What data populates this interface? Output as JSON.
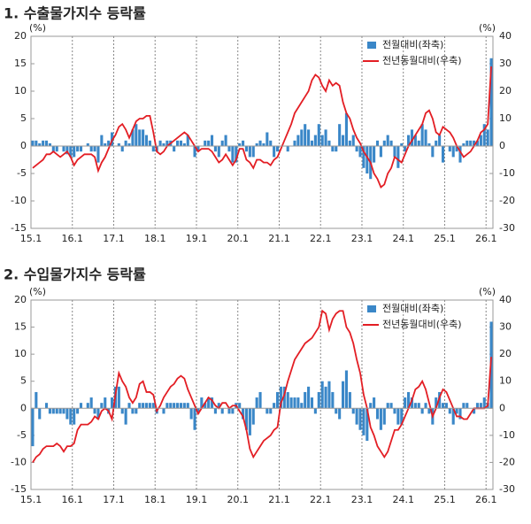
{
  "chart_data": [
    {
      "type": "combo",
      "title": "1. 수출물가지수 등락률",
      "y_label": "(%)",
      "y2_label": "(%)",
      "categories": [
        "15.1",
        null,
        null,
        null,
        null,
        null,
        null,
        null,
        null,
        null,
        null,
        null,
        "16.1",
        null,
        null,
        null,
        null,
        null,
        null,
        null,
        null,
        null,
        null,
        null,
        "17.1",
        null,
        null,
        null,
        null,
        null,
        null,
        null,
        null,
        null,
        null,
        null,
        "18.1",
        null,
        null,
        null,
        null,
        null,
        null,
        null,
        null,
        null,
        null,
        null,
        "19.1",
        null,
        null,
        null,
        null,
        null,
        null,
        null,
        null,
        null,
        null,
        null,
        "20.1",
        null,
        null,
        null,
        null,
        null,
        null,
        null,
        null,
        null,
        null,
        null,
        "21.1",
        null,
        null,
        null,
        null,
        null,
        null,
        null,
        null,
        null,
        null,
        null,
        "22.1",
        null,
        null,
        null,
        null,
        null,
        null,
        null,
        null,
        null,
        null,
        null,
        "23.1",
        null,
        null,
        null,
        null,
        null,
        null,
        null,
        null,
        null,
        null,
        null,
        "24.1",
        null,
        null,
        null,
        null,
        null,
        null,
        null,
        null,
        null,
        null,
        null,
        "25.1",
        null,
        null,
        null,
        null,
        null,
        null,
        null,
        null,
        null,
        null,
        null,
        "26.1",
        null
      ],
      "series": [
        {
          "name": "전월대비(좌축)",
          "type": "bar",
          "color": "#3a87c8",
          "values": [
            1,
            1,
            0.5,
            1,
            1,
            0.5,
            -1,
            -1,
            0,
            -1,
            -1.5,
            -2,
            -2,
            -1,
            -1,
            0,
            0.5,
            -1,
            -1,
            -3,
            2,
            0.5,
            1,
            2.5,
            0,
            0.5,
            -1,
            1,
            0.5,
            3,
            4,
            3,
            3,
            2,
            1,
            -1,
            -1,
            1,
            0.5,
            1,
            1,
            -1,
            1,
            1,
            0.5,
            2,
            0,
            -2,
            -1,
            0,
            1,
            1,
            2,
            -1,
            -2,
            1,
            2,
            -1,
            -3,
            -3,
            0.5,
            1,
            -1,
            -2,
            -2,
            0.5,
            1,
            0.5,
            2.5,
            1,
            -2,
            -1,
            0,
            0,
            -1,
            0,
            1,
            2,
            3,
            4,
            3,
            1,
            2,
            4,
            2,
            3,
            1,
            -1,
            -1,
            4,
            2,
            6,
            1,
            2,
            -1,
            -2,
            -4,
            -5,
            -6,
            -3,
            1,
            -2,
            1,
            2,
            1,
            -2,
            -4,
            0.5,
            -1,
            2,
            3,
            2,
            1,
            4,
            3,
            0.5,
            -2,
            1,
            2,
            -3,
            0,
            -1,
            -2,
            -1,
            -3,
            0.5,
            1,
            1,
            1,
            1,
            2,
            4,
            3,
            16
          ]
        },
        {
          "name": "전년동월대비(우축)",
          "type": "line",
          "axis": "y2",
          "color": "#e31e24",
          "values": [
            -8,
            -7,
            -6,
            -5,
            -3,
            -3,
            -2,
            -3,
            -4,
            -3,
            -2,
            -4,
            -7,
            -5,
            -4,
            -3,
            -3,
            -3,
            -4,
            -9,
            -6,
            -4,
            -1,
            2,
            4,
            7,
            8,
            6,
            3,
            6,
            9,
            10,
            10,
            11,
            11,
            5,
            -2,
            -3,
            -2,
            0,
            1,
            2,
            3,
            4,
            5,
            4,
            2,
            0,
            -2,
            -1,
            -1,
            -1,
            -2,
            -4,
            -6,
            -5,
            -3,
            -5,
            -7,
            -5,
            -1,
            -1,
            -5,
            -6,
            -8,
            -5,
            -5,
            -6,
            -6,
            -7,
            -5,
            -4,
            -1,
            2,
            5,
            8,
            12,
            14,
            16,
            18,
            20,
            24,
            26,
            25,
            22,
            20,
            24,
            22,
            23,
            22,
            16,
            12,
            10,
            6,
            3,
            1,
            -2,
            -4,
            -6,
            -10,
            -12,
            -15,
            -14,
            -10,
            -8,
            -4,
            -5,
            -6,
            -3,
            0,
            2,
            4,
            6,
            8,
            12,
            13,
            10,
            5,
            4,
            7,
            6,
            5,
            3,
            0,
            -2,
            -4,
            -3,
            -2,
            0,
            2,
            5,
            6,
            8,
            29
          ]
        }
      ],
      "ylim": [
        -15,
        20
      ],
      "yticks": [
        -15,
        -10,
        -5,
        0,
        5,
        10,
        15,
        20
      ],
      "y2lim": [
        -30,
        40
      ],
      "y2ticks": [
        -30,
        -20,
        -10,
        0,
        10,
        20,
        30,
        40
      ]
    },
    {
      "type": "combo",
      "title": "2. 수입물가지수 등락률",
      "y_label": "(%)",
      "y2_label": "(%)",
      "categories": [
        "15.1",
        null,
        null,
        null,
        null,
        null,
        null,
        null,
        null,
        null,
        null,
        null,
        "16.1",
        null,
        null,
        null,
        null,
        null,
        null,
        null,
        null,
        null,
        null,
        null,
        "17.1",
        null,
        null,
        null,
        null,
        null,
        null,
        null,
        null,
        null,
        null,
        null,
        "18.1",
        null,
        null,
        null,
        null,
        null,
        null,
        null,
        null,
        null,
        null,
        null,
        "19.1",
        null,
        null,
        null,
        null,
        null,
        null,
        null,
        null,
        null,
        null,
        null,
        "20.1",
        null,
        null,
        null,
        null,
        null,
        null,
        null,
        null,
        null,
        null,
        null,
        "21.1",
        null,
        null,
        null,
        null,
        null,
        null,
        null,
        null,
        null,
        null,
        null,
        "22.1",
        null,
        null,
        null,
        null,
        null,
        null,
        null,
        null,
        null,
        null,
        null,
        "23.1",
        null,
        null,
        null,
        null,
        null,
        null,
        null,
        null,
        null,
        null,
        null,
        "24.1",
        null,
        null,
        null,
        null,
        null,
        null,
        null,
        null,
        null,
        null,
        null,
        "25.1",
        null,
        null,
        null,
        null,
        null,
        null,
        null,
        null,
        null,
        null,
        null,
        "26.1",
        null
      ],
      "series": [
        {
          "name": "전월대비(좌축)",
          "type": "bar",
          "color": "#3a87c8",
          "values": [
            -7,
            3,
            -2,
            0,
            1,
            -1,
            -1,
            -1,
            -1,
            -1,
            -2,
            -3,
            -3,
            -1,
            1,
            0,
            1,
            2,
            -1,
            -2,
            1,
            2,
            -1,
            2,
            4,
            4,
            -1,
            -3,
            1,
            -1,
            -1,
            1,
            1,
            1,
            1,
            1,
            -1,
            0,
            -1,
            1,
            1,
            1,
            1,
            1,
            1,
            1,
            -2,
            -4,
            -1,
            2,
            1,
            2,
            2,
            -1,
            1,
            -1,
            0,
            -1,
            -1,
            1,
            1,
            -2,
            -4,
            -5,
            -3,
            2,
            3,
            0,
            -1,
            -1,
            1,
            3,
            4,
            4,
            3,
            2,
            2,
            2,
            1,
            3,
            4,
            2,
            -1,
            3,
            5,
            4,
            5,
            3,
            -1,
            -2,
            5,
            7,
            3,
            -1,
            -3,
            -4,
            -5,
            -6,
            1,
            2,
            -2,
            -4,
            -3,
            1,
            1,
            -1,
            -3,
            -3,
            2,
            3,
            2,
            1,
            1,
            -1,
            1,
            -1,
            -3,
            2,
            3,
            1,
            1,
            -1,
            -3,
            -1,
            -2,
            1,
            1,
            0,
            -1,
            1,
            1,
            2,
            1,
            16
          ]
        },
        {
          "name": "전년동월대비(우축)",
          "type": "line",
          "axis": "y2",
          "color": "#e31e24",
          "values": [
            -20,
            -18,
            -17,
            -15,
            -14,
            -14,
            -14,
            -13,
            -14,
            -16,
            -14,
            -14,
            -13,
            -8,
            -6,
            -6,
            -6,
            -5,
            -3,
            -4,
            -1,
            0,
            -1,
            -4,
            5,
            13,
            10,
            8,
            4,
            2,
            4,
            9,
            10,
            6,
            6,
            5,
            -1,
            1,
            4,
            6,
            8,
            9,
            11,
            12,
            11,
            7,
            4,
            1,
            -2,
            0,
            2,
            4,
            3,
            1,
            0,
            2,
            2,
            0,
            1,
            1,
            -1,
            -3,
            -8,
            -15,
            -18,
            -16,
            -14,
            -12,
            -11,
            -10,
            -8,
            -7,
            2,
            5,
            10,
            14,
            18,
            20,
            22,
            24,
            25,
            26,
            28,
            30,
            36,
            35,
            29,
            33,
            35,
            36,
            36,
            30,
            28,
            24,
            18,
            13,
            5,
            0,
            -7,
            -10,
            -14,
            -16,
            -18,
            -16,
            -12,
            -8,
            -8,
            -6,
            -3,
            0,
            3,
            7,
            8,
            10,
            7,
            2,
            -3,
            0,
            4,
            7,
            6,
            3,
            0,
            -3,
            -3,
            -4,
            -4,
            -2,
            0,
            0,
            0,
            0,
            1,
            19
          ]
        }
      ],
      "ylim": [
        -15,
        20
      ],
      "yticks": [
        -15,
        -10,
        -5,
        0,
        5,
        10,
        15,
        20
      ],
      "y2lim": [
        -30,
        40
      ],
      "y2ticks": [
        -30,
        -20,
        -10,
        0,
        10,
        20,
        30,
        40
      ]
    }
  ]
}
